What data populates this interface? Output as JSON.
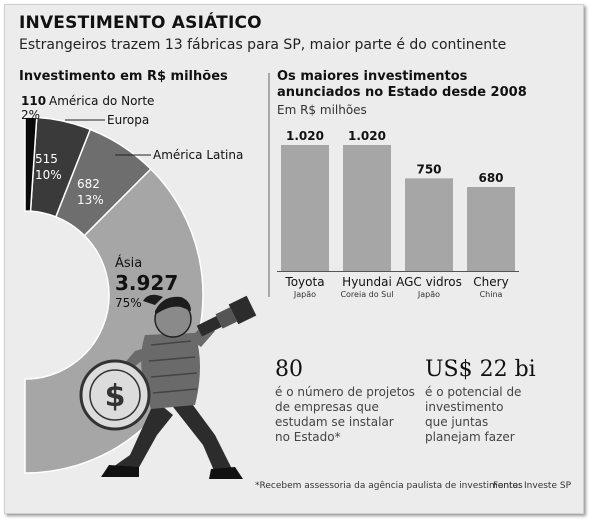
{
  "header": {
    "title": "INVESTIMENTO ASIÁTICO",
    "subtitle": "Estrangeiros trazem 13 fábricas para SP, maior parte é do continente"
  },
  "colors": {
    "asia": "#a6a6a6",
    "america_latina": "#6e6e6e",
    "europa": "#3a3a3a",
    "america_norte": "#0a0a0a",
    "bar": "#a6a6a6",
    "background": "#ececec"
  },
  "chart_data": [
    {
      "type": "pie",
      "title": "Investimento em R$ milhões",
      "slices": [
        {
          "label": "Ásia",
          "value": 3927,
          "value_text": "3.927",
          "percent_text": "75%"
        },
        {
          "label": "América Latina",
          "value": 682,
          "value_text": "682",
          "percent_text": "13%"
        },
        {
          "label": "Europa",
          "value": 515,
          "value_text": "515",
          "percent_text": "10%"
        },
        {
          "label": "América do Norte",
          "value": 110,
          "value_text": "110",
          "percent_text": "2%"
        }
      ]
    },
    {
      "type": "bar",
      "title": "Os maiores investimentos anunciados no Estado desde 2008",
      "title_lines": [
        "Os maiores investimentos",
        "anunciados no Estado desde 2008"
      ],
      "unit": "Em R$ milhões",
      "ylim": [
        0,
        1100
      ],
      "categories": [
        "Toyota",
        "Hyundai",
        "AGC vidros",
        "Chery"
      ],
      "countries": [
        "Japão",
        "Coreia do Sul",
        "Japão",
        "China"
      ],
      "values": [
        1020,
        1020,
        750,
        680
      ],
      "value_labels": [
        "1.020",
        "1.020",
        "750",
        "680"
      ]
    }
  ],
  "stats": [
    {
      "number": "80",
      "lines": [
        "é o número de projetos",
        "de empresas que",
        "estudam se instalar",
        "no Estado*"
      ]
    },
    {
      "number": "US$ 22 bi",
      "lines": [
        "é o potencial de",
        "investimento",
        "que juntas",
        "planejam fazer"
      ]
    }
  ],
  "footnote": "*Recebem assessoria da agência paulista de investimentos",
  "source": "Fonte: Investe SP"
}
